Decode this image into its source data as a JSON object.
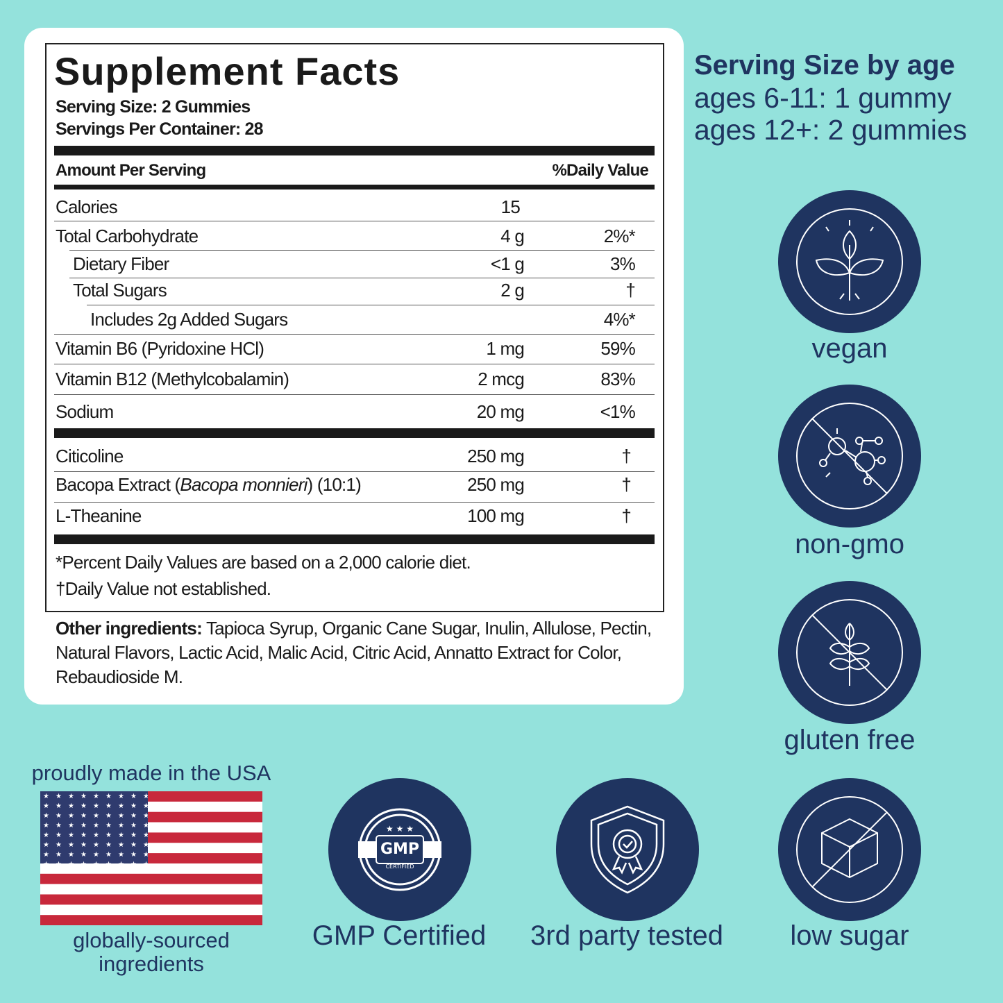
{
  "supplement_facts": {
    "title": "Supplement Facts",
    "serving_size": "Serving Size: 2 Gummies",
    "servings_per_container": "Servings Per Container: 28",
    "header": {
      "amount": "Amount Per Serving",
      "dv": "%Daily Value"
    },
    "rows": [
      {
        "name": "Calories",
        "amount": "15"
      },
      {
        "name": "Total Carbohydrate",
        "amount": "4 g",
        "dv": "2%*"
      },
      {
        "name": "Dietary Fiber",
        "amount": "<1 g",
        "dv": "3%"
      },
      {
        "name": "Total Sugars",
        "amount": "2 g",
        "dv": "†"
      },
      {
        "name": "Includes 2g Added Sugars",
        "dv": "4%*"
      },
      {
        "name": "Vitamin B6 (Pyridoxine HCl)",
        "amount": "1 mg",
        "dv": "59%"
      },
      {
        "name": "Vitamin B12 (Methylcobalamin)",
        "amount": "2 mcg",
        "dv": "83%"
      },
      {
        "name": "Sodium",
        "amount": "20 mg",
        "dv": "<1%"
      },
      {
        "name": "Citicoline",
        "amount": "250 mg",
        "dv": "†"
      },
      {
        "name": [
          "Bacopa Extract (",
          "Bacopa monnieri",
          ") (10:1)"
        ],
        "amount": "250 mg",
        "dv": "†"
      },
      {
        "name": "L-Theanine",
        "amount": "100 mg",
        "dv": "†"
      }
    ],
    "footnotes": [
      "*Percent Daily Values are based on a 2,000 calorie diet.",
      "†Daily Value not established."
    ],
    "other_ingredients": {
      "label": "Other ingredients:",
      "text": "Tapioca Syrup, Organic Cane Sugar, Inulin, Allulose, Pectin, Natural Flavors, Lactic Acid, Malic Acid, Citric Acid, Annatto Extract for Color, Rebaudioside M."
    }
  },
  "serving_by_age": {
    "title": "Serving Size by age",
    "lines": [
      "ages 6-11: 1 gummy",
      "ages 12+: 2 gummies"
    ]
  },
  "badges": {
    "vegan": "vegan",
    "non_gmo": "non-gmo",
    "gluten_free": "gluten free",
    "low_sugar": "low sugar",
    "gmp": {
      "label": "GMP Certified",
      "seal": "GMP",
      "seal_sub": "CERTIFIED"
    },
    "third_party": "3rd party tested"
  },
  "usa": {
    "top": "proudly made in the USA",
    "bottom": "globally-sourced ingredients"
  }
}
